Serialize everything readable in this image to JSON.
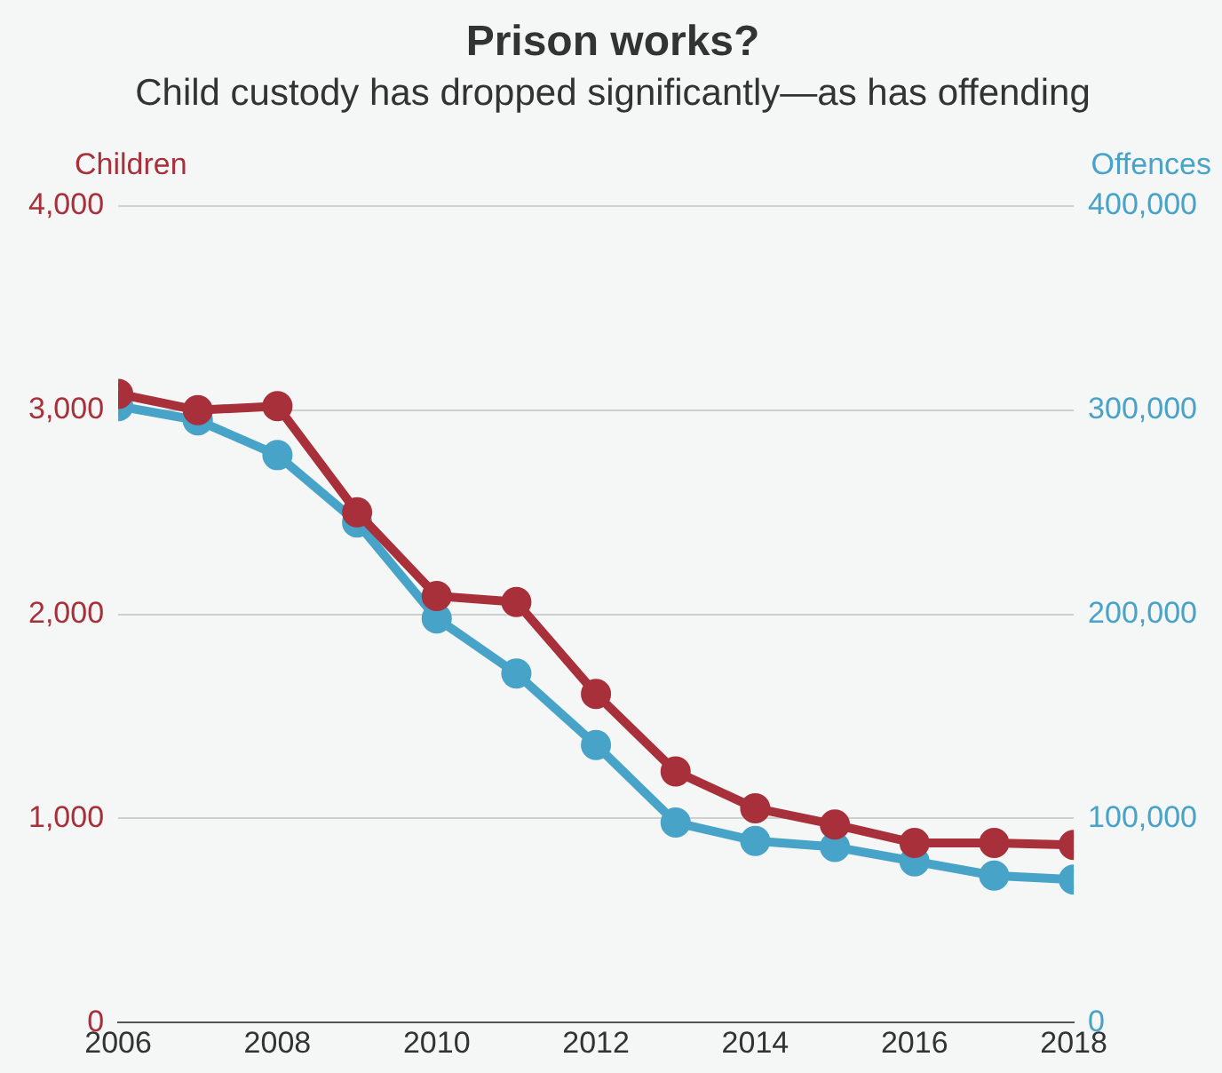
{
  "chart_data": {
    "type": "line",
    "title": "Prison works?",
    "subtitle": "Child custody has dropped significantly—as has offending",
    "ylabel": "Children",
    "y2label": "Offences",
    "x": [
      2006,
      2007,
      2008,
      2009,
      2010,
      2011,
      2012,
      2013,
      2014,
      2015,
      2016,
      2017,
      2018
    ],
    "xlim": [
      2006,
      2018
    ],
    "xticks": [
      2006,
      2008,
      2010,
      2012,
      2014,
      2016,
      2018
    ],
    "ylim": [
      0,
      4000
    ],
    "yticks": [
      {
        "value": 0,
        "label": "0"
      },
      {
        "value": 1000,
        "label": "1,000"
      },
      {
        "value": 2000,
        "label": "2,000"
      },
      {
        "value": 3000,
        "label": "3,000"
      },
      {
        "value": 4000,
        "label": "4,000"
      }
    ],
    "y2lim": [
      0,
      400000
    ],
    "y2ticks": [
      {
        "value": 0,
        "label": "0"
      },
      {
        "value": 100000,
        "label": "100,000"
      },
      {
        "value": 200000,
        "label": "200,000"
      },
      {
        "value": 300000,
        "label": "300,000"
      },
      {
        "value": 400000,
        "label": "400,000"
      }
    ],
    "series": [
      {
        "color": "#a8303a",
        "values": [
          3080,
          3000,
          3020,
          2500,
          2090,
          2060,
          1610,
          1230,
          1050,
          970,
          880,
          880,
          870
        ]
      },
      {
        "color": "#48a3c8",
        "axis": "y2",
        "values": [
          302000,
          295000,
          278000,
          245000,
          198000,
          171000,
          136000,
          98000,
          89000,
          86000,
          79000,
          72000,
          70000
        ]
      }
    ],
    "grid": "y",
    "legend": false,
    "marker": "circle",
    "line_style": "solid"
  }
}
